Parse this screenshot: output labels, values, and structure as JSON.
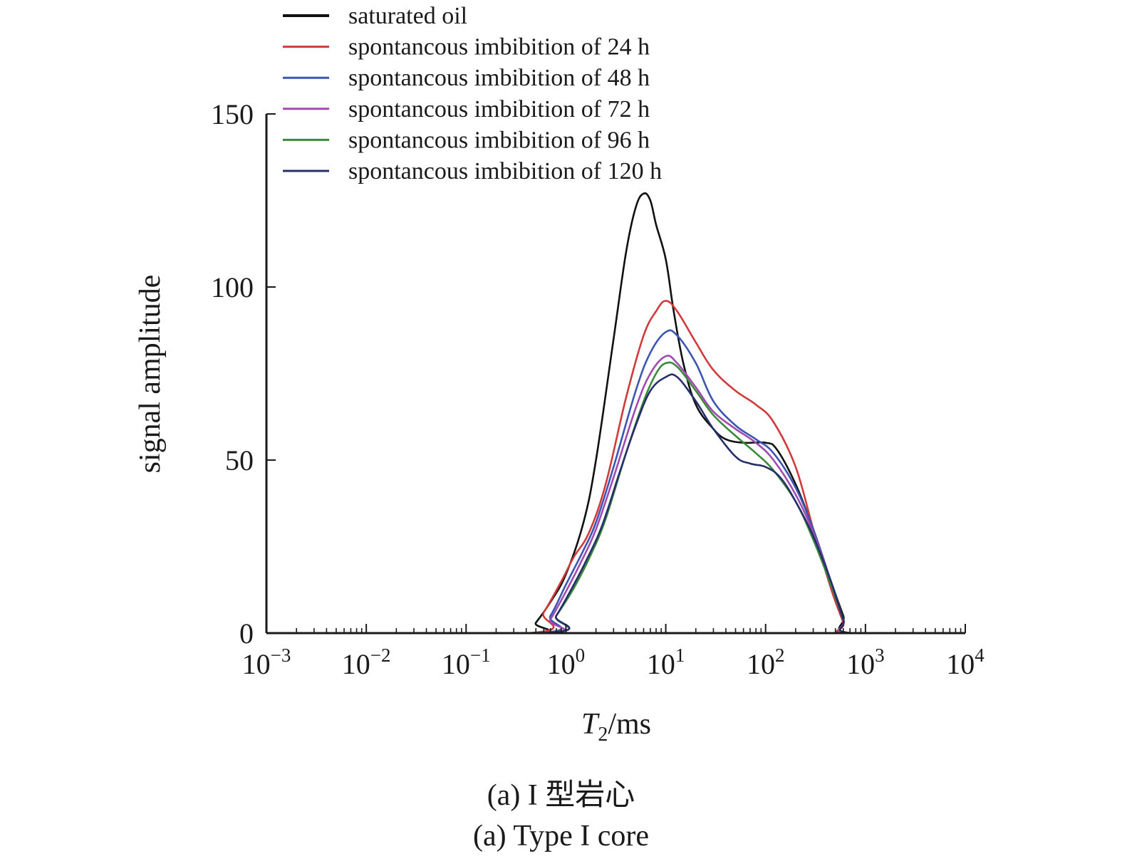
{
  "chart_data": {
    "type": "line",
    "xlabel": {
      "main": "T",
      "sub": "2",
      "unit": "/ms"
    },
    "ylabel": "signal amplitude",
    "x_scale": "log",
    "xlim": [
      0.001,
      10000
    ],
    "ylim": [
      0,
      150
    ],
    "x_ticks": [
      {
        "base": "10",
        "exp": "−3",
        "value": 0.001
      },
      {
        "base": "10",
        "exp": "−2",
        "value": 0.01
      },
      {
        "base": "10",
        "exp": "−1",
        "value": 0.1
      },
      {
        "base": "10",
        "exp": "0",
        "value": 1
      },
      {
        "base": "10",
        "exp": "1",
        "value": 10
      },
      {
        "base": "10",
        "exp": "2",
        "value": 100
      },
      {
        "base": "10",
        "exp": "3",
        "value": 1000
      },
      {
        "base": "10",
        "exp": "4",
        "value": 10000
      }
    ],
    "y_ticks": [
      {
        "label": "0",
        "value": 0
      },
      {
        "label": "50",
        "value": 50
      },
      {
        "label": "100",
        "value": 100
      },
      {
        "label": "150",
        "value": 150
      }
    ],
    "grid": false,
    "legend_position": "top",
    "series": [
      {
        "name": "saturated oil",
        "color": "#111111",
        "points": [
          [
            0.001,
            0
          ],
          [
            0.4,
            0
          ],
          [
            0.5,
            3
          ],
          [
            0.7,
            9
          ],
          [
            1,
            17
          ],
          [
            1.5,
            32
          ],
          [
            2,
            50
          ],
          [
            3,
            85
          ],
          [
            4,
            110
          ],
          [
            5,
            123
          ],
          [
            6,
            127
          ],
          [
            7,
            125
          ],
          [
            8,
            118
          ],
          [
            10,
            108
          ],
          [
            12,
            93
          ],
          [
            15,
            78
          ],
          [
            20,
            66
          ],
          [
            30,
            59
          ],
          [
            40,
            56
          ],
          [
            60,
            55
          ],
          [
            100,
            55
          ],
          [
            130,
            53
          ],
          [
            200,
            43
          ],
          [
            300,
            30
          ],
          [
            450,
            15
          ],
          [
            600,
            5
          ],
          [
            700,
            0
          ],
          [
            10000,
            0
          ]
        ]
      },
      {
        "name": "spontancous imbibition of 24 h",
        "color": "#d03a3a",
        "points": [
          [
            0.001,
            0
          ],
          [
            0.42,
            0
          ],
          [
            0.6,
            6
          ],
          [
            0.9,
            15
          ],
          [
            1.2,
            22
          ],
          [
            1.7,
            29
          ],
          [
            2.5,
            43
          ],
          [
            4,
            68
          ],
          [
            6,
            86
          ],
          [
            8,
            93
          ],
          [
            10,
            96
          ],
          [
            13,
            93
          ],
          [
            20,
            84
          ],
          [
            30,
            76
          ],
          [
            50,
            70
          ],
          [
            80,
            66
          ],
          [
            120,
            61
          ],
          [
            200,
            48
          ],
          [
            300,
            30
          ],
          [
            450,
            13
          ],
          [
            600,
            3
          ],
          [
            650,
            0
          ],
          [
            10000,
            0
          ]
        ]
      },
      {
        "name": "spontancous imbibition of 48 h",
        "color": "#3a56b0",
        "points": [
          [
            0.001,
            0
          ],
          [
            0.5,
            0
          ],
          [
            0.7,
            5
          ],
          [
            1,
            14
          ],
          [
            1.5,
            24
          ],
          [
            2,
            32
          ],
          [
            3,
            48
          ],
          [
            5,
            70
          ],
          [
            7,
            81
          ],
          [
            10,
            87
          ],
          [
            13,
            86
          ],
          [
            20,
            78
          ],
          [
            30,
            67
          ],
          [
            50,
            60
          ],
          [
            80,
            56
          ],
          [
            120,
            52
          ],
          [
            200,
            42
          ],
          [
            300,
            30
          ],
          [
            450,
            15
          ],
          [
            600,
            4
          ],
          [
            700,
            0
          ],
          [
            10000,
            0
          ]
        ]
      },
      {
        "name": "spontancous imbibition of 72 h",
        "color": "#a04ab0",
        "points": [
          [
            0.001,
            0
          ],
          [
            0.55,
            0
          ],
          [
            0.7,
            4
          ],
          [
            1,
            12
          ],
          [
            1.5,
            22
          ],
          [
            2,
            30
          ],
          [
            3,
            45
          ],
          [
            5,
            65
          ],
          [
            7,
            75
          ],
          [
            10,
            80
          ],
          [
            13,
            78
          ],
          [
            20,
            71
          ],
          [
            30,
            64
          ],
          [
            50,
            59
          ],
          [
            80,
            55
          ],
          [
            120,
            50
          ],
          [
            200,
            40
          ],
          [
            300,
            29
          ],
          [
            450,
            15
          ],
          [
            600,
            4
          ],
          [
            700,
            0
          ],
          [
            10000,
            0
          ]
        ]
      },
      {
        "name": "spontancous imbibition of 96 h",
        "color": "#3a8a3a",
        "points": [
          [
            0.001,
            0
          ],
          [
            0.6,
            0
          ],
          [
            0.8,
            5
          ],
          [
            1.2,
            13
          ],
          [
            1.8,
            23
          ],
          [
            2.5,
            33
          ],
          [
            4,
            52
          ],
          [
            6,
            67
          ],
          [
            8,
            75
          ],
          [
            10,
            78
          ],
          [
            13,
            77
          ],
          [
            20,
            70
          ],
          [
            30,
            63
          ],
          [
            50,
            57
          ],
          [
            80,
            52
          ],
          [
            120,
            47
          ],
          [
            200,
            38
          ],
          [
            300,
            27
          ],
          [
            450,
            14
          ],
          [
            600,
            4
          ],
          [
            720,
            0
          ],
          [
            10000,
            0
          ]
        ]
      },
      {
        "name": "spontancous imbibition of 120 h",
        "color": "#262f6a",
        "points": [
          [
            0.001,
            0
          ],
          [
            0.6,
            0
          ],
          [
            0.8,
            5
          ],
          [
            1.1,
            12
          ],
          [
            1.6,
            21
          ],
          [
            2.3,
            31
          ],
          [
            3.5,
            47
          ],
          [
            5,
            60
          ],
          [
            7,
            70
          ],
          [
            10,
            74
          ],
          [
            13,
            74
          ],
          [
            20,
            67
          ],
          [
            30,
            59
          ],
          [
            50,
            51
          ],
          [
            70,
            49
          ],
          [
            100,
            48
          ],
          [
            140,
            45
          ],
          [
            200,
            38
          ],
          [
            300,
            28
          ],
          [
            450,
            15
          ],
          [
            600,
            4
          ],
          [
            720,
            0
          ],
          [
            10000,
            0
          ]
        ]
      }
    ]
  },
  "captions": {
    "chinese": "(a) I 型岩心",
    "english": "(a) Type I core"
  }
}
